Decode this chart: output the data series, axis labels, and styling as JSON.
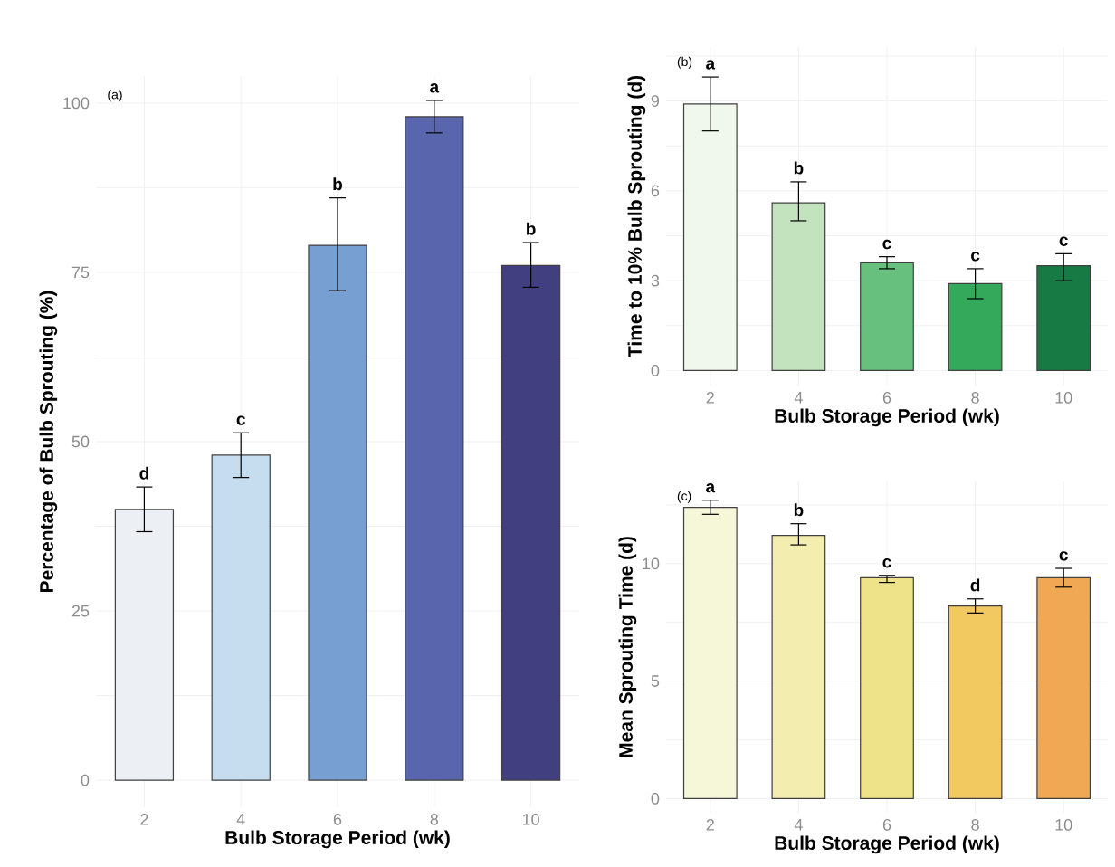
{
  "chart_data": [
    {
      "type": "bar",
      "title": "(a)",
      "xlabel": "Bulb Storage Period (wk)",
      "ylabel": "Percentage of Bulb Sprouting (%)",
      "categories": [
        "2",
        "4",
        "6",
        "8",
        "10"
      ],
      "values": [
        40,
        48,
        79,
        98,
        76
      ],
      "colors": [
        "#eceff4",
        "#c6dcef",
        "#779fd2",
        "#5966ad",
        "#413f80"
      ],
      "errors": [
        [
          36.7,
          43.3
        ],
        [
          44.7,
          51.3
        ],
        [
          72.3,
          86
        ],
        [
          95.6,
          100.4
        ],
        [
          72.8,
          79.4
        ]
      ],
      "ylim": [
        -4,
        104
      ],
      "yticks": [
        0,
        {
          "value": 12.5,
          "label": null
        },
        25,
        {
          "value": 37.5,
          "label": null
        },
        50,
        {
          "value": 62.5,
          "label": null
        },
        75,
        {
          "value": 87.5,
          "label": null
        },
        100
      ],
      "grid": true,
      "annotations": [
        {
          "text": "d",
          "x": "2",
          "y": 43.3
        },
        {
          "text": "c",
          "x": "4",
          "y": 51.3
        },
        {
          "text": "b",
          "x": "6",
          "y": 86
        },
        {
          "text": "a",
          "x": "8",
          "y": 100.4
        },
        {
          "text": "b",
          "x": "10",
          "y": 79.4
        }
      ]
    },
    {
      "type": "bar",
      "title": "(b)",
      "xlabel": "Bulb Storage Period (wk)",
      "ylabel": "Time to 10% Bulb Sprouting (d)",
      "categories": [
        "2",
        "4",
        "6",
        "8",
        "10"
      ],
      "values": [
        8.9,
        5.6,
        3.6,
        2.9,
        3.5
      ],
      "colors": [
        "#f0f7ec",
        "#c2e3bd",
        "#67c07d",
        "#34a85b",
        "#177a45"
      ],
      "errors": [
        [
          8.0,
          9.8
        ],
        [
          5.0,
          6.3
        ],
        [
          3.4,
          3.8
        ],
        [
          2.4,
          3.4
        ],
        [
          3.0,
          3.9
        ]
      ],
      "ylim": [
        -0.5,
        10.8
      ],
      "yticks": [
        0,
        {
          "value": 1.5,
          "label": null
        },
        3,
        {
          "value": 4.5,
          "label": null
        },
        6,
        {
          "value": 7.5,
          "label": null
        },
        9,
        {
          "value": 10.5,
          "label": null
        }
      ],
      "grid": true,
      "annotations": [
        {
          "text": "a",
          "x": "2",
          "y": 9.8
        },
        {
          "text": "b",
          "x": "4",
          "y": 6.3
        },
        {
          "text": "c",
          "x": "6",
          "y": 3.8
        },
        {
          "text": "c",
          "x": "8",
          "y": 3.4
        },
        {
          "text": "c",
          "x": "10",
          "y": 3.9
        }
      ]
    },
    {
      "type": "bar",
      "title": "(c)",
      "xlabel": "Bulb Storage Period (wk)",
      "ylabel": "Mean Sprouting Time (d)",
      "categories": [
        "2",
        "4",
        "6",
        "8",
        "10"
      ],
      "values": [
        12.4,
        11.2,
        9.4,
        8.2,
        9.4
      ],
      "colors": [
        "#f6f6d8",
        "#f3eeb0",
        "#efe38a",
        "#f2c860",
        "#f0a855"
      ],
      "errors": [
        [
          12.1,
          12.7
        ],
        [
          10.8,
          11.7
        ],
        [
          9.2,
          9.5
        ],
        [
          7.9,
          8.5
        ],
        [
          9.0,
          9.8
        ]
      ],
      "ylim": [
        -0.6,
        13.5
      ],
      "yticks": [
        0,
        {
          "value": 2.5,
          "label": null
        },
        5,
        {
          "value": 7.5,
          "label": null
        },
        10,
        {
          "value": 12.5,
          "label": null
        }
      ],
      "grid": true,
      "annotations": [
        {
          "text": "a",
          "x": "2",
          "y": 12.7
        },
        {
          "text": "b",
          "x": "4",
          "y": 11.7
        },
        {
          "text": "c",
          "x": "6",
          "y": 9.5
        },
        {
          "text": "d",
          "x": "8",
          "y": 8.5
        },
        {
          "text": "c",
          "x": "10",
          "y": 9.8
        }
      ]
    }
  ]
}
